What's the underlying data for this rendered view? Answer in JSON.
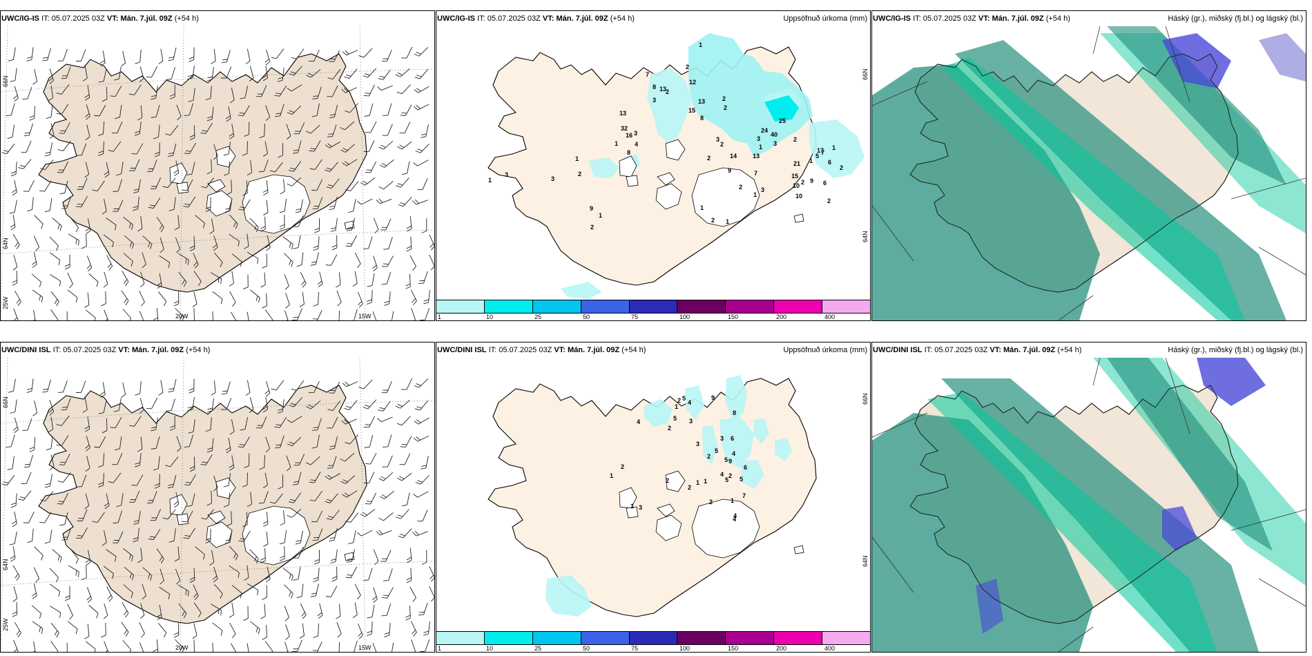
{
  "panels": {
    "p1": {
      "model": "UWC/IG-IS",
      "it_label": "IT:",
      "it_value": "05.07.2025 03Z",
      "vt_label": "VT:",
      "vt_value": "Mán. 7.júl. 09Z",
      "lead": "(+54 h)",
      "right_title": ""
    },
    "p2": {
      "model": "UWC/IG-IS",
      "it_label": "IT:",
      "it_value": "05.07.2025 03Z",
      "vt_label": "VT:",
      "vt_value": "Mán. 7.júl. 09Z",
      "lead": "(+54 h)",
      "right_title": "Uppsöfnuð úrkoma (mm)"
    },
    "p3": {
      "model": "UWC/IG-IS",
      "it_label": "IT:",
      "it_value": "05.07.2025 03Z",
      "vt_label": "VT:",
      "vt_value": "Mán. 7.júl. 09Z",
      "lead": "(+54 h)",
      "right_title": "Háský (gr.), miðský (fj.bl.) og lágský (bl.)"
    },
    "p4": {
      "model": "UWC/DINI ISL",
      "it_label": "IT:",
      "it_value": "05.07.2025 03Z",
      "vt_label": "VT:",
      "vt_value": "Mán. 7.júl. 09Z",
      "lead": "(+54 h)",
      "right_title": ""
    },
    "p5": {
      "model": "UWC/DINI ISL",
      "it_label": "IT:",
      "it_value": "05.07.2025 03Z",
      "vt_label": "VT:",
      "vt_value": "Mán. 7.júl. 09Z",
      "lead": "(+54 h)",
      "right_title": "Uppsöfnuð úrkoma (mm)"
    },
    "p6": {
      "model": "UWC/DINI ISL",
      "it_label": "IT:",
      "it_value": "05.07.2025 03Z",
      "vt_label": "VT:",
      "vt_value": "Mán. 7.júl. 09Z",
      "lead": "(+54 h)",
      "right_title": "Háský (gr.), miðský (fj.bl.) og lágský (bl.)"
    }
  },
  "axes": {
    "lat_66": "66N",
    "lat_64": "64N",
    "lon_25": "25W",
    "lon_20": "20W",
    "lon_15": "15W"
  },
  "legend": {
    "ticks": [
      "1",
      "10",
      "25",
      "50",
      "75",
      "100",
      "150",
      "200",
      "400"
    ],
    "colors": [
      "#b8f5f5",
      "#00eded",
      "#00c5ee",
      "#3a63e6",
      "#2b2bb5",
      "#6b0060",
      "#a8008e",
      "#ee00b0",
      "#f5aaf0"
    ]
  },
  "colors": {
    "land": "#ede0d0",
    "land_precip_panel": "#fdf1e4",
    "ocean": "#ffffff",
    "cloud_high": "#1f8c7a",
    "cloud_mid": "#00c89a",
    "cloud_low": "#4a4ad8"
  },
  "precip_labels": {
    "p2": [
      "1",
      "2",
      "13",
      "16",
      "7",
      "2",
      "3",
      "13",
      "12",
      "8",
      "13",
      "15",
      "8",
      "2",
      "2",
      "3",
      "4",
      "8",
      "1",
      "32",
      "25",
      "24",
      "40",
      "2",
      "3",
      "3",
      "3",
      "2",
      "14",
      "13",
      "1",
      "2",
      "9",
      "7",
      "17",
      "21",
      "15",
      "6",
      "10",
      "5",
      "1",
      "9",
      "6",
      "7",
      "1",
      "2",
      "2",
      "10",
      "2",
      "3",
      "2",
      "1",
      "1",
      "2",
      "1",
      "1",
      "2",
      "3",
      "1",
      "3",
      "1",
      "9",
      "2"
    ],
    "p5": [
      "2",
      "5",
      "9",
      "8",
      "3",
      "4",
      "1",
      "4",
      "5",
      "2",
      "3",
      "6",
      "4",
      "5",
      "9",
      "3",
      "6",
      "5",
      "2",
      "5",
      "4",
      "1",
      "1",
      "5",
      "7",
      "1",
      "2",
      "1",
      "2",
      "2",
      "4",
      "4",
      "2",
      "2",
      "1",
      "3"
    ]
  }
}
